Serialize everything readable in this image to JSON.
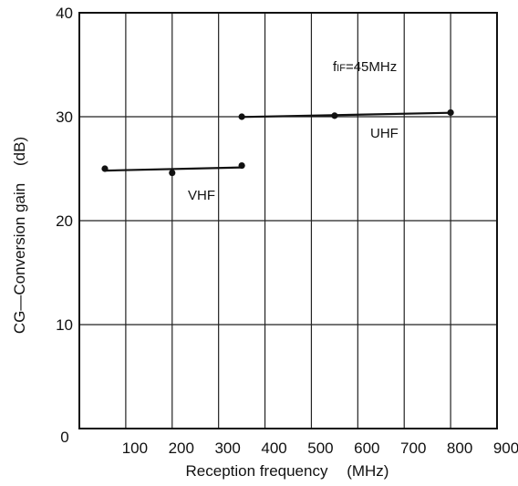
{
  "chart_data": {
    "type": "line",
    "title": "",
    "xlabel": "Reception frequency",
    "xunit": "(MHz)",
    "ylabel": "CG—Conversion gain",
    "yunit": "(dB)",
    "xlim": [
      0,
      900
    ],
    "ylim": [
      0,
      40
    ],
    "xticks": [
      0,
      100,
      200,
      300,
      400,
      500,
      600,
      700,
      800,
      900
    ],
    "yticks": [
      0,
      10,
      20,
      30,
      40
    ],
    "grid": true,
    "legend": "none",
    "series": [
      {
        "name": "VHF",
        "color": "#111111",
        "x": [
          55,
          200,
          350
        ],
        "y": [
          25.0,
          24.6,
          25.3
        ]
      },
      {
        "name": "UHF",
        "color": "#111111",
        "x": [
          350,
          550,
          800
        ],
        "y": [
          30.0,
          30.1,
          30.4
        ]
      }
    ],
    "annotations": {
      "condition_main": "f",
      "condition_sub": "IF",
      "condition_value": "=45MHz"
    }
  }
}
